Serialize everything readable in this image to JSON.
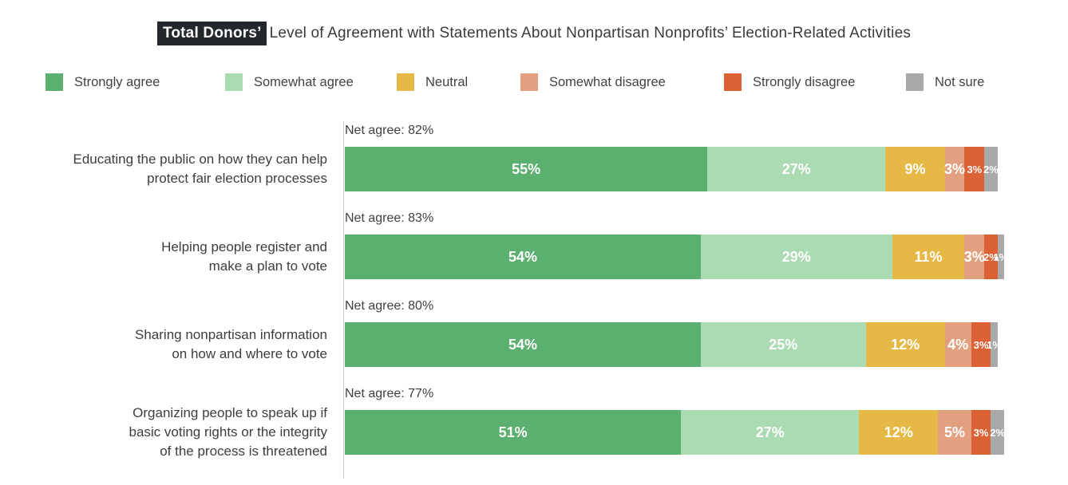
{
  "title": {
    "highlight": "Total Donors’",
    "rest": "Level of Agreement with Statements About Nonpartisan Nonprofits’ Election-Related Activities"
  },
  "chart_data": {
    "type": "bar",
    "orientation": "horizontal",
    "stacked": true,
    "value_unit": "%",
    "xlim": [
      0,
      100
    ],
    "grid": false,
    "legend_position": "top",
    "categories": [
      "Educating the public on how they can help protect fair election processes",
      "Helping people register and make a plan to vote",
      "Sharing nonpartisan information on how and where to vote",
      "Organizing people to speak up if basic voting rights or the integrity of the process is threatened"
    ],
    "categories_lines": [
      [
        "Educating the public on how they can help",
        "protect fair election processes"
      ],
      [
        "Helping people register and",
        "make a plan to vote"
      ],
      [
        "Sharing nonpartisan information",
        "on how and where to vote"
      ],
      [
        "Organizing people to speak up if",
        "basic voting rights or the integrity",
        "of the process is threatened"
      ]
    ],
    "net_agree_labels": [
      "Net agree: 82%",
      "Net agree: 83%",
      "Net agree: 80%",
      "Net agree: 77%"
    ],
    "series": [
      {
        "name": "Strongly agree",
        "color": "#5bb06f",
        "values": [
          55,
          54,
          54,
          51
        ]
      },
      {
        "name": "Somewhat agree",
        "color": "#abdbb3",
        "values": [
          27,
          29,
          25,
          27
        ]
      },
      {
        "name": "Neutral",
        "color": "#e6b845",
        "values": [
          9,
          11,
          12,
          12
        ]
      },
      {
        "name": "Somewhat disagree",
        "color": "#e3a080",
        "values": [
          3,
          3,
          4,
          5
        ]
      },
      {
        "name": "Strongly disagree",
        "color": "#dc6236",
        "values": [
          3,
          2,
          3,
          3
        ]
      },
      {
        "name": "Not sure",
        "color": "#a9a9a9",
        "values": [
          2,
          1,
          1,
          2
        ]
      }
    ]
  }
}
